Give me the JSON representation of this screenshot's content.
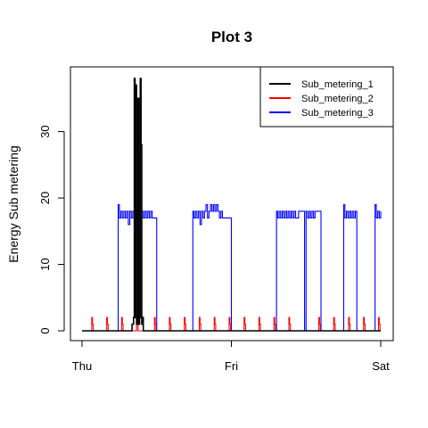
{
  "chart_data": {
    "type": "line",
    "title": "Plot 3",
    "xlabel": "",
    "ylabel": "Energy Sub metering",
    "x_ticks": [
      "Thu",
      "Fri",
      "Sat"
    ],
    "xlim": [
      0,
      2
    ],
    "ylim": [
      0,
      38
    ],
    "y_ticks": [
      0,
      10,
      20,
      30
    ],
    "legend": {
      "placement": "top-right",
      "entries": [
        "Sub_metering_1",
        "Sub_metering_2",
        "Sub_metering_3"
      ]
    },
    "grid": false,
    "series": [
      {
        "name": "Sub_metering_1",
        "color": "#000000",
        "x": [
          0,
          0.33,
          0.335,
          0.345,
          0.35,
          0.355,
          0.36,
          0.365,
          0.37,
          0.375,
          0.38,
          0.385,
          0.39,
          0.395,
          0.4,
          0.405,
          0.41,
          0.42,
          0.44,
          0.5,
          1.0,
          1.5,
          2.0
        ],
        "y": [
          0,
          0,
          1,
          2,
          38,
          2,
          37,
          1,
          2,
          35,
          1,
          2,
          38,
          28,
          1,
          2,
          0,
          0,
          0,
          0,
          0,
          0,
          0
        ]
      },
      {
        "name": "Sub_metering_2",
        "color": "#ff0000",
        "x": [
          0.06,
          0.065,
          0.07,
          0.075,
          0.16,
          0.165,
          0.17,
          0.175,
          0.26,
          0.265,
          0.27,
          0.275,
          0.36,
          0.365,
          0.37,
          0.375,
          0.48,
          0.485,
          0.49,
          0.495,
          0.58,
          0.585,
          0.59,
          0.595,
          0.68,
          0.685,
          0.69,
          0.695,
          0.78,
          0.785,
          0.79,
          0.795,
          0.88,
          0.885,
          0.89,
          0.895,
          0.98,
          0.985,
          0.99,
          0.995,
          1.08,
          1.085,
          1.09,
          1.095,
          1.18,
          1.185,
          1.19,
          1.195,
          1.28,
          1.285,
          1.29,
          1.295,
          1.38,
          1.385,
          1.39,
          1.395,
          1.58,
          1.585,
          1.59,
          1.595,
          1.68,
          1.685,
          1.69,
          1.695,
          1.78,
          1.785,
          1.79,
          1.795,
          1.88,
          1.885,
          1.89,
          1.895,
          1.98,
          1.985,
          1.99,
          1.995
        ],
        "y": [
          0,
          2,
          1,
          0,
          0,
          2,
          1,
          0,
          0,
          2,
          1,
          0,
          0,
          2,
          1,
          0,
          0,
          2,
          1,
          0,
          0,
          2,
          1,
          0,
          0,
          2,
          1,
          0,
          0,
          2,
          1,
          0,
          0,
          2,
          1,
          0,
          0,
          2,
          1,
          0,
          0,
          2,
          1,
          0,
          0,
          2,
          1,
          0,
          0,
          2,
          1,
          0,
          0,
          2,
          1,
          0,
          0,
          2,
          1,
          0,
          0,
          2,
          1,
          0,
          0,
          2,
          1,
          0,
          0,
          2,
          1,
          0,
          0,
          2,
          1,
          0
        ]
      },
      {
        "name": "Sub_metering_3",
        "color": "#0000ff",
        "x": [
          0,
          0.24,
          0.242,
          0.25,
          0.26,
          0.27,
          0.28,
          0.29,
          0.3,
          0.31,
          0.32,
          0.33,
          0.34,
          0.35,
          0.36,
          0.37,
          0.38,
          0.39,
          0.4,
          0.41,
          0.42,
          0.43,
          0.44,
          0.45,
          0.46,
          0.47,
          0.5,
          0.6,
          0.74,
          0.742,
          0.75,
          0.76,
          0.77,
          0.78,
          0.79,
          0.8,
          0.81,
          0.82,
          0.83,
          0.84,
          0.85,
          0.86,
          0.87,
          0.88,
          0.89,
          0.9,
          0.91,
          0.92,
          0.93,
          0.94,
          1.0,
          1.1,
          1.3,
          1.302,
          1.31,
          1.32,
          1.33,
          1.34,
          1.35,
          1.36,
          1.37,
          1.38,
          1.39,
          1.4,
          1.41,
          1.42,
          1.43,
          1.45,
          1.49,
          1.5,
          1.51,
          1.52,
          1.53,
          1.54,
          1.55,
          1.56,
          1.6,
          1.65,
          1.75,
          1.752,
          1.76,
          1.77,
          1.78,
          1.79,
          1.8,
          1.81,
          1.82,
          1.83,
          1.84,
          1.86,
          1.9,
          1.95,
          1.96,
          1.962,
          1.97,
          1.98,
          1.99,
          2.0
        ],
        "y": [
          0,
          0,
          19,
          17,
          18,
          17,
          18,
          17,
          18,
          16,
          18,
          17,
          18,
          17,
          18,
          17,
          18,
          17,
          18,
          17,
          18,
          17,
          18,
          17,
          18,
          17,
          0,
          0,
          0,
          18,
          17,
          18,
          17,
          18,
          16,
          18,
          17,
          18,
          19,
          17,
          18,
          19,
          18,
          19,
          18,
          19,
          18,
          17,
          18,
          17,
          0,
          0,
          0,
          18,
          17,
          18,
          17,
          18,
          17,
          18,
          17,
          18,
          17,
          18,
          17,
          18,
          17,
          18,
          0,
          18,
          17,
          18,
          17,
          18,
          17,
          18,
          0,
          0,
          0,
          19,
          17,
          18,
          17,
          18,
          17,
          18,
          17,
          18,
          0,
          0,
          0,
          0,
          0,
          19,
          17,
          18,
          17,
          18
        ]
      }
    ]
  }
}
